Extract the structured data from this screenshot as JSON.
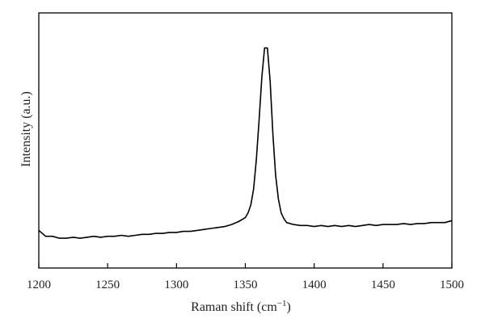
{
  "chart_data": {
    "type": "line",
    "title": "",
    "xlabel": "Raman shift (cm",
    "xlabel_superscript": "−1",
    "xlabel_close": ")",
    "ylabel": "Intensity (a.u.)",
    "xlim": [
      1200,
      1500
    ],
    "ylim": [
      0,
      1
    ],
    "x_ticks": [
      1200,
      1250,
      1300,
      1350,
      1400,
      1450,
      1500
    ],
    "y_ticks": [],
    "grid": false,
    "legend": "none",
    "line_color": "#000000",
    "series": [
      {
        "x": [
          1200,
          1205,
          1210,
          1215,
          1220,
          1225,
          1230,
          1235,
          1240,
          1245,
          1250,
          1255,
          1260,
          1265,
          1270,
          1275,
          1280,
          1285,
          1290,
          1295,
          1300,
          1305,
          1310,
          1315,
          1320,
          1325,
          1330,
          1335,
          1340,
          1345,
          1350,
          1352,
          1354,
          1356,
          1358,
          1360,
          1362,
          1364,
          1366,
          1368,
          1370,
          1372,
          1374,
          1376,
          1378,
          1380,
          1385,
          1390,
          1395,
          1400,
          1405,
          1410,
          1415,
          1420,
          1425,
          1430,
          1435,
          1440,
          1445,
          1450,
          1455,
          1460,
          1465,
          1470,
          1475,
          1480,
          1485,
          1490,
          1495,
          1500
        ],
        "y": [
          0.06,
          0.03,
          0.03,
          0.02,
          0.02,
          0.025,
          0.02,
          0.025,
          0.03,
          0.025,
          0.03,
          0.03,
          0.035,
          0.03,
          0.035,
          0.04,
          0.04,
          0.045,
          0.045,
          0.05,
          0.05,
          0.055,
          0.055,
          0.06,
          0.065,
          0.07,
          0.075,
          0.08,
          0.09,
          0.105,
          0.125,
          0.15,
          0.19,
          0.27,
          0.42,
          0.62,
          0.84,
          0.99,
          0.99,
          0.82,
          0.55,
          0.34,
          0.22,
          0.15,
          0.12,
          0.1,
          0.09,
          0.085,
          0.085,
          0.08,
          0.085,
          0.08,
          0.085,
          0.08,
          0.085,
          0.08,
          0.085,
          0.09,
          0.085,
          0.09,
          0.09,
          0.09,
          0.095,
          0.09,
          0.095,
          0.095,
          0.1,
          0.1,
          0.1,
          0.11
        ]
      }
    ]
  }
}
